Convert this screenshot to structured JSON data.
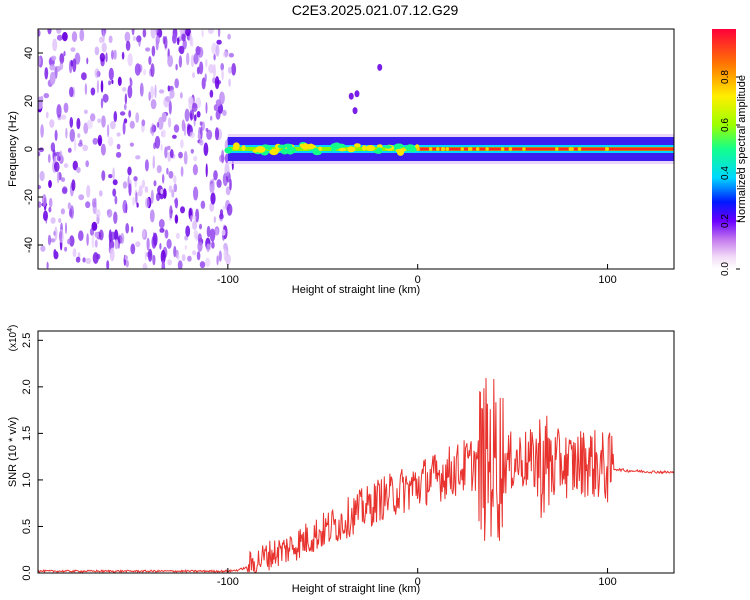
{
  "title": "C2E3.2025.021.07.12.G29",
  "chart_data": [
    {
      "type": "heatmap",
      "title": "C2E3.2025.021.07.12.G29",
      "xlabel": "Height of straight line (km)",
      "ylabel": "Frequency (Hz)",
      "xlim": [
        -200,
        135
      ],
      "ylim": [
        -50,
        50
      ],
      "xticks": [
        -100,
        0,
        100
      ],
      "yticks": [
        -40,
        -20,
        0,
        20,
        40
      ],
      "colorbar": {
        "label": "Normalized spectral amplitude",
        "range": [
          0,
          1
        ],
        "ticks": [
          0.0,
          0.2,
          0.4,
          0.6,
          0.8
        ],
        "tick_labels": [
          "0.0",
          "0.2",
          "0.4",
          "0.6",
          "0.8"
        ]
      },
      "noise_region_x": [
        -200,
        -100
      ],
      "signal_band": {
        "x_start": -100,
        "x_end": 135,
        "center_hz": 0,
        "halfwidth_hz": 5
      },
      "isolated_blobs": [
        {
          "x": -35,
          "y": 22
        },
        {
          "x": -32,
          "y": 23
        },
        {
          "x": -33,
          "y": 16
        },
        {
          "x": -20,
          "y": 34
        }
      ]
    },
    {
      "type": "line",
      "xlabel": "Height of straight line (km)",
      "ylabel": "SNR (10 * v/v)",
      "y_multiplier": "(x10",
      "y_multiplier_exp": "4",
      "y_multiplier_close": ")",
      "xlim": [
        -200,
        135
      ],
      "ylim": [
        0,
        2.6
      ],
      "xticks": [
        -100,
        0,
        100
      ],
      "yticks": [
        0.0,
        0.5,
        1.0,
        1.5,
        2.0,
        2.5
      ],
      "ytick_labels": [
        "0.0",
        "0.5",
        "1.0",
        "1.5",
        "2.0",
        "2.5"
      ],
      "color": "#e8322d",
      "series": [
        {
          "x": [
            -200,
            -150,
            -100,
            -95,
            -90,
            -85,
            -80,
            -75,
            -70,
            -65,
            -60,
            -55,
            -50,
            -45,
            -40,
            -35,
            -30,
            -25,
            -20,
            -15,
            -10,
            -5,
            0,
            5,
            10,
            15,
            20,
            25,
            30,
            35,
            40,
            45,
            50,
            55,
            60,
            65,
            70,
            75,
            80,
            85,
            90,
            95,
            100,
            103,
            110,
            120,
            135
          ],
          "y": [
            0.02,
            0.02,
            0.02,
            0.03,
            0.06,
            0.12,
            0.18,
            0.22,
            0.25,
            0.3,
            0.35,
            0.4,
            0.45,
            0.5,
            0.55,
            0.62,
            0.68,
            0.72,
            0.8,
            0.82,
            0.88,
            0.9,
            0.95,
            1.0,
            1.02,
            1.08,
            1.1,
            1.15,
            1.18,
            1.2,
            1.25,
            1.15,
            1.2,
            1.22,
            1.2,
            1.18,
            1.15,
            1.2,
            1.15,
            1.18,
            1.2,
            1.15,
            1.12,
            1.12,
            1.1,
            1.09,
            1.08
          ]
        }
      ]
    }
  ]
}
